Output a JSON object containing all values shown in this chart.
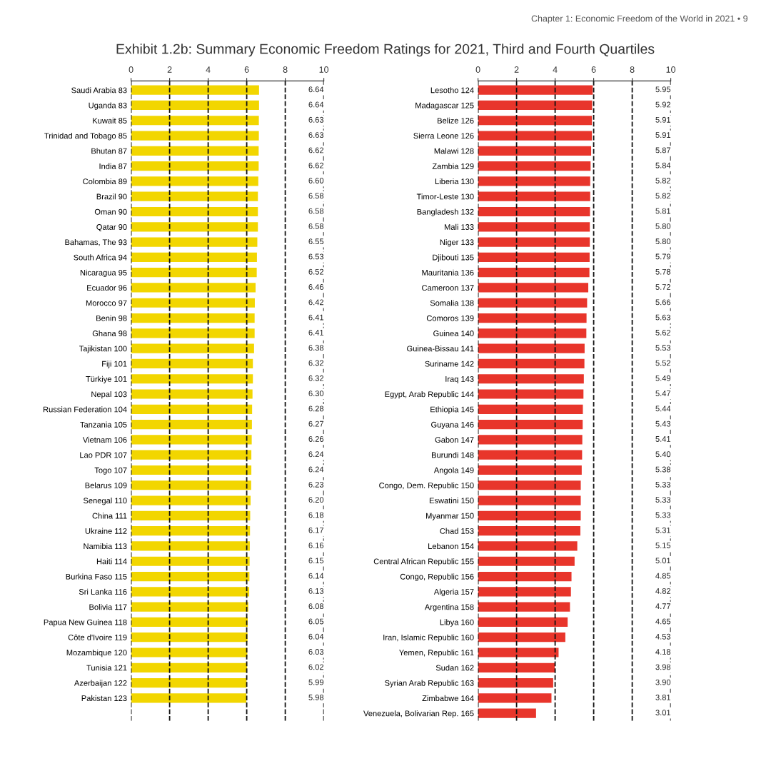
{
  "chart_data": [
    {
      "type": "bar",
      "orientation": "horizontal",
      "title": "Exhibit 1.2b: Summary Economic Freedom Ratings for 2021, Third and Fourth Quartiles",
      "annotations": [
        "Chapter 1: Economic Freedom of the World in 2021 • 9"
      ],
      "categories": [
        "Saudi Arabia 83",
        "Uganda 83",
        "Kuwait 85",
        "Trinidad and Tobago 85",
        "Bhutan 87",
        "India 87",
        "Colombia 89",
        "Brazil 90",
        "Oman 90",
        "Qatar 90",
        "Bahamas, The 93",
        "South Africa 94",
        "Nicaragua 95",
        "Ecuador 96",
        "Morocco 97",
        "Benin 98",
        "Ghana 98",
        "Tajikistan 100",
        "Fiji 101",
        "Türkiye 101",
        "Nepal 103",
        "Russian Federation 104",
        "Tanzania 105",
        "Vietnam 106",
        "Lao PDR 107",
        "Togo 107",
        "Belarus 109",
        "Senegal 110",
        "China 111",
        "Ukraine 112",
        "Namibia 113",
        "Haiti 114",
        "Burkina Faso 115",
        "Sri Lanka 116",
        "Bolivia 117",
        "Papua New Guinea 118",
        "Côte d'Ivoire 119",
        "Mozambique 120",
        "Tunisia 121",
        "Azerbaijan 122",
        "Pakistan 123"
      ],
      "values": [
        6.64,
        6.64,
        6.63,
        6.63,
        6.62,
        6.62,
        6.6,
        6.58,
        6.58,
        6.58,
        6.55,
        6.53,
        6.52,
        6.46,
        6.42,
        6.41,
        6.41,
        6.38,
        6.32,
        6.32,
        6.3,
        6.28,
        6.27,
        6.26,
        6.24,
        6.24,
        6.23,
        6.2,
        6.18,
        6.17,
        6.16,
        6.15,
        6.14,
        6.13,
        6.08,
        6.05,
        6.04,
        6.03,
        6.02,
        5.99,
        5.98
      ],
      "value_labels": [
        "6.64",
        "6.64",
        "6.63",
        "6.63",
        "6.62",
        "6.62",
        "6.60",
        "6.58",
        "6.58",
        "6.58",
        "6.55",
        "6.53",
        "6.52",
        "6.46",
        "6.42",
        "6.41",
        "6.41",
        "6.38",
        "6.32",
        "6.32",
        "6.30",
        "6.28",
        "6.27",
        "6.26",
        "6.24",
        "6.24",
        "6.23",
        "6.20",
        "6.18",
        "6.17",
        "6.16",
        "6.15",
        "6.14",
        "6.13",
        "6.08",
        "6.05",
        "6.04",
        "6.03",
        "6.02",
        "5.99",
        "5.98"
      ],
      "color": "#f2d600",
      "xlim": [
        0,
        10
      ],
      "xticks": [
        0,
        2,
        4,
        6,
        8,
        10
      ],
      "grid": "x",
      "line_style": "dashed"
    },
    {
      "type": "bar",
      "orientation": "horizontal",
      "categories": [
        "Lesotho 124",
        "Madagascar 125",
        "Belize 126",
        "Sierra Leone 126",
        "Malawi 128",
        "Zambia 129",
        "Liberia 130",
        "Timor-Leste 130",
        "Bangladesh 132",
        "Mali 133",
        "Niger 133",
        "Djibouti 135",
        "Mauritania 136",
        "Cameroon 137",
        "Somalia 138",
        "Comoros 139",
        "Guinea 140",
        "Guinea-Bissau 141",
        "Suriname 142",
        "Iraq 143",
        "Egypt, Arab Republic 144",
        "Ethiopia 145",
        "Guyana 146",
        "Gabon 147",
        "Burundi 148",
        "Angola 149",
        "Congo, Dem. Republic 150",
        "Eswatini 150",
        "Myanmar 150",
        "Chad 153",
        "Lebanon 154",
        "Central African Republic 155",
        "Congo, Republic 156",
        "Algeria 157",
        "Argentina 158",
        "Libya 160",
        "Iran, Islamic Republic 160",
        "Yemen, Republic 161",
        "Sudan 162",
        "Syrian Arab Republic 163",
        "Zimbabwe 164",
        "Venezuela, Bolivarian Rep. 165"
      ],
      "values": [
        5.95,
        5.92,
        5.91,
        5.91,
        5.87,
        5.84,
        5.82,
        5.82,
        5.81,
        5.8,
        5.8,
        5.79,
        5.78,
        5.72,
        5.66,
        5.63,
        5.62,
        5.53,
        5.52,
        5.49,
        5.47,
        5.44,
        5.43,
        5.41,
        5.4,
        5.38,
        5.33,
        5.33,
        5.33,
        5.31,
        5.15,
        5.01,
        4.85,
        4.82,
        4.77,
        4.65,
        4.53,
        4.18,
        3.98,
        3.9,
        3.81,
        3.01
      ],
      "value_labels": [
        "5.95",
        "5.92",
        "5.91",
        "5.91",
        "5.87",
        "5.84",
        "5.82",
        "5.82",
        "5.81",
        "5.80",
        "5.80",
        "5.79",
        "5.78",
        "5.72",
        "5.66",
        "5.63",
        "5.62",
        "5.53",
        "5.52",
        "5.49",
        "5.47",
        "5.44",
        "5.43",
        "5.41",
        "5.40",
        "5.38",
        "5.33",
        "5.33",
        "5.33",
        "5.31",
        "5.15",
        "5.01",
        "4.85",
        "4.82",
        "4.77",
        "4.65",
        "4.53",
        "4.18",
        "3.98",
        "3.90",
        "3.81",
        "3.01"
      ],
      "color": "#e8352b",
      "xlim": [
        0,
        10
      ],
      "xticks": [
        0,
        2,
        4,
        6,
        8,
        10
      ],
      "grid": "x",
      "line_style": "dashed"
    }
  ]
}
